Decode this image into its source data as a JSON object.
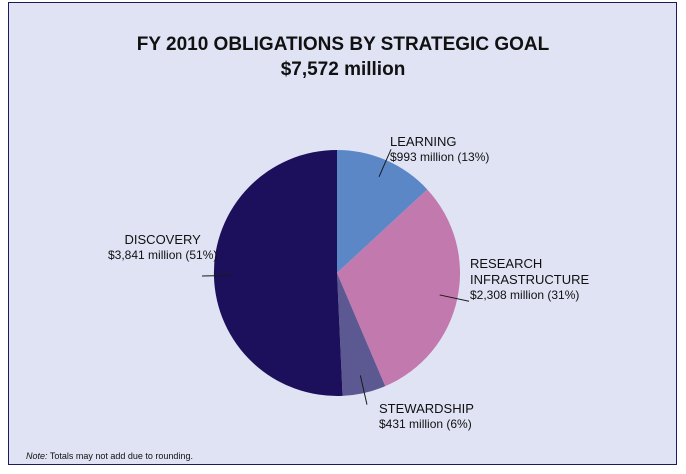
{
  "chart_data": {
    "type": "pie",
    "title": "FY 2010 OBLIGATIONS BY STRATEGIC GOAL",
    "subtitle": "$7,572 million",
    "start_angle_deg": 0,
    "direction": "clockwise",
    "slices": [
      {
        "label": "LEARNING",
        "value": 993,
        "value_label": "$993 million (13%)",
        "color": "#5b87c7"
      },
      {
        "label": "RESEARCH INFRASTRUCTURE",
        "label_lines": [
          "RESEARCH",
          "INFRASTRUCTURE"
        ],
        "value": 2308,
        "value_label": "$2,308 million (31%)",
        "color": "#c279ae"
      },
      {
        "label": "STEWARDSHIP",
        "value": 431,
        "value_label": "$431 million (6%)",
        "color": "#5c5891"
      },
      {
        "label": "DISCOVERY",
        "value": 3841,
        "value_label": "$3,841 million (51%)",
        "color": "#1c0f5c"
      }
    ]
  },
  "note": {
    "prefix": "Note:",
    "text": " Totals may not add due to rounding."
  },
  "colors": {
    "background": "#dfe3f4",
    "border": "#1b1b5e"
  }
}
